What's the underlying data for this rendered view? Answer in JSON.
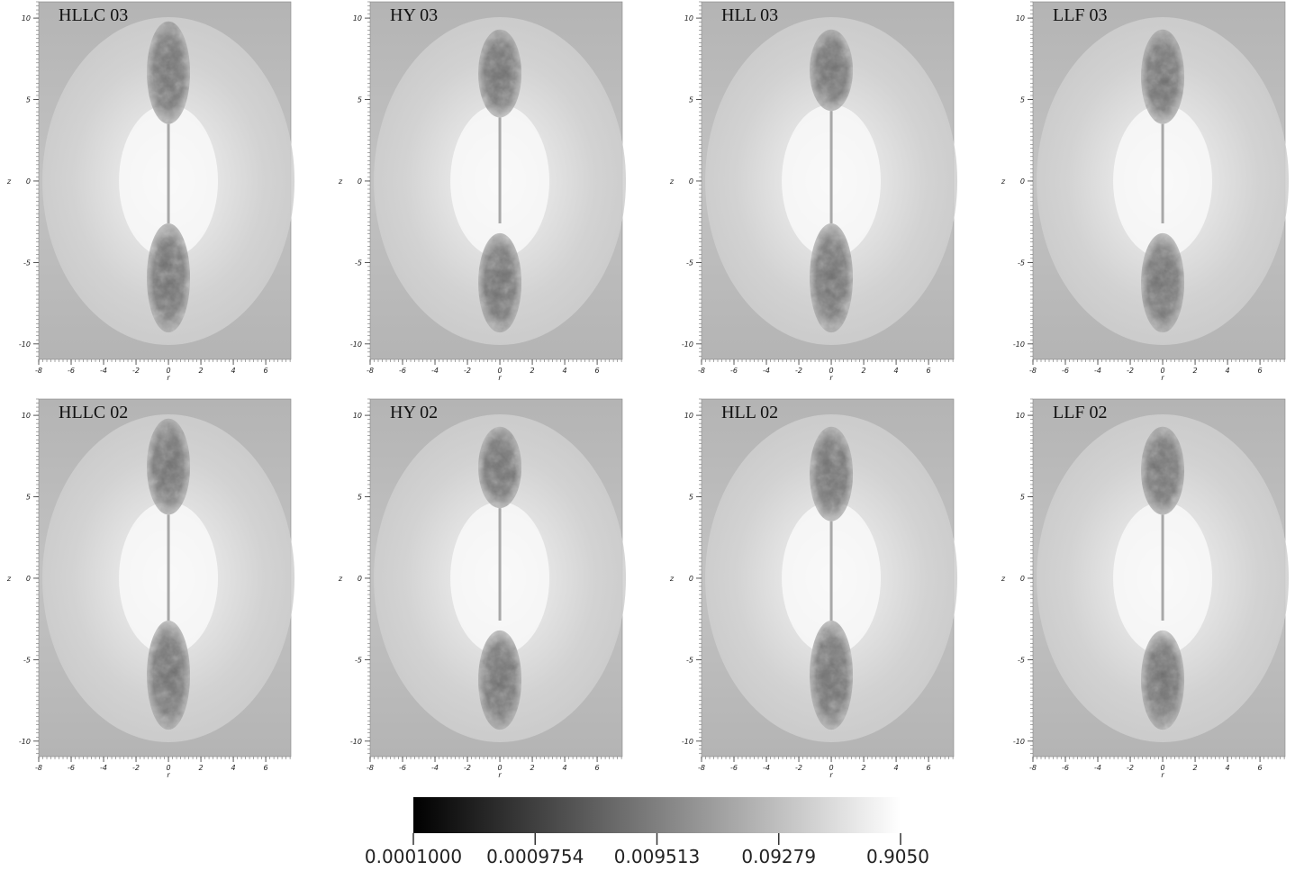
{
  "figure": {
    "panels": [
      {
        "label": "HLLC 03"
      },
      {
        "label": "HY 03"
      },
      {
        "label": "HLL 03"
      },
      {
        "label": "LLF 03"
      },
      {
        "label": "HLLC 02"
      },
      {
        "label": "HY 02"
      },
      {
        "label": "HLL 02"
      },
      {
        "label": "LLF 02"
      }
    ],
    "axes": {
      "x_label": "r",
      "y_label": "z",
      "xlim": [
        -8,
        7.55
      ],
      "ylim": [
        -10.95,
        11
      ],
      "xticks": [
        -8,
        -6,
        -4,
        -2,
        0,
        2,
        4,
        6
      ],
      "yticks": [
        -10,
        -5,
        0,
        5,
        10
      ]
    },
    "colorbar": {
      "ticks": [
        "0.0001000",
        "0.0009754",
        "0.009513",
        "0.09279",
        "0.9050"
      ]
    }
  }
}
